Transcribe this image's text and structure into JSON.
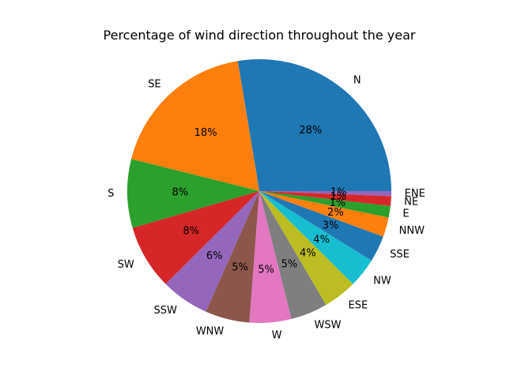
{
  "chart_data": {
    "type": "pie",
    "title": "Percentage of wind direction throughout the year",
    "start_angle_deg": 0,
    "direction": "counterclockwise",
    "autopct_format": "0%",
    "slices": [
      {
        "label": "N",
        "value": 27.5,
        "color": "#1f77b4"
      },
      {
        "label": "SE",
        "value": 18.4,
        "color": "#ff7f0e"
      },
      {
        "label": "S",
        "value": 8.4,
        "color": "#2ca02c"
      },
      {
        "label": "SW",
        "value": 7.9,
        "color": "#d62728"
      },
      {
        "label": "SSW",
        "value": 5.9,
        "color": "#9467bd"
      },
      {
        "label": "WNW",
        "value": 5.4,
        "color": "#8c564b"
      },
      {
        "label": "W",
        "value": 5.1,
        "color": "#e377c2"
      },
      {
        "label": "WSW",
        "value": 4.5,
        "color": "#7f7f7f"
      },
      {
        "label": "ESE",
        "value": 4.1,
        "color": "#bcbd22"
      },
      {
        "label": "NW",
        "value": 3.6,
        "color": "#17becf"
      },
      {
        "label": "SSE",
        "value": 3.2,
        "color": "#1f77b4"
      },
      {
        "label": "NNW",
        "value": 2.4,
        "color": "#ff7f0e"
      },
      {
        "label": "E",
        "value": 1.4,
        "color": "#2ca02c"
      },
      {
        "label": "NE",
        "value": 1.2,
        "color": "#d62728"
      },
      {
        "label": "ENE",
        "value": 0.6,
        "color": "#9467bd"
      }
    ]
  }
}
